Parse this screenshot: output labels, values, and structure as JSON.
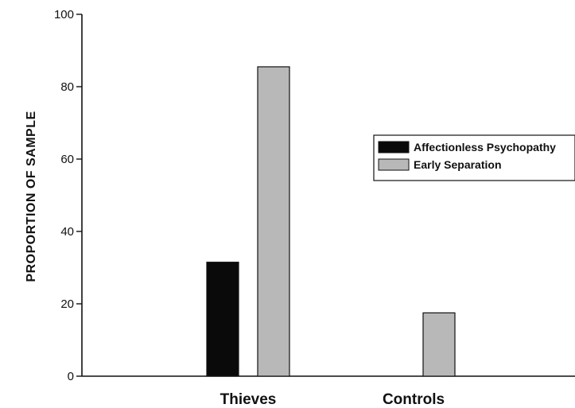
{
  "chart_data": {
    "type": "bar",
    "title": "",
    "xlabel": "",
    "ylabel": "PROPORTION OF SAMPLE",
    "ylim": [
      0,
      100
    ],
    "yticks": [
      0,
      20,
      40,
      60,
      80,
      100
    ],
    "categories": [
      "Thieves",
      "Controls"
    ],
    "series": [
      {
        "name": "Affectionless Psychopathy",
        "values": [
          31.5,
          0
        ],
        "color": "#0a0a0a"
      },
      {
        "name": "Early Separation",
        "values": [
          85.5,
          17.5
        ],
        "color": "#b8b8b8"
      }
    ],
    "legend_position": "right",
    "grid": false
  }
}
